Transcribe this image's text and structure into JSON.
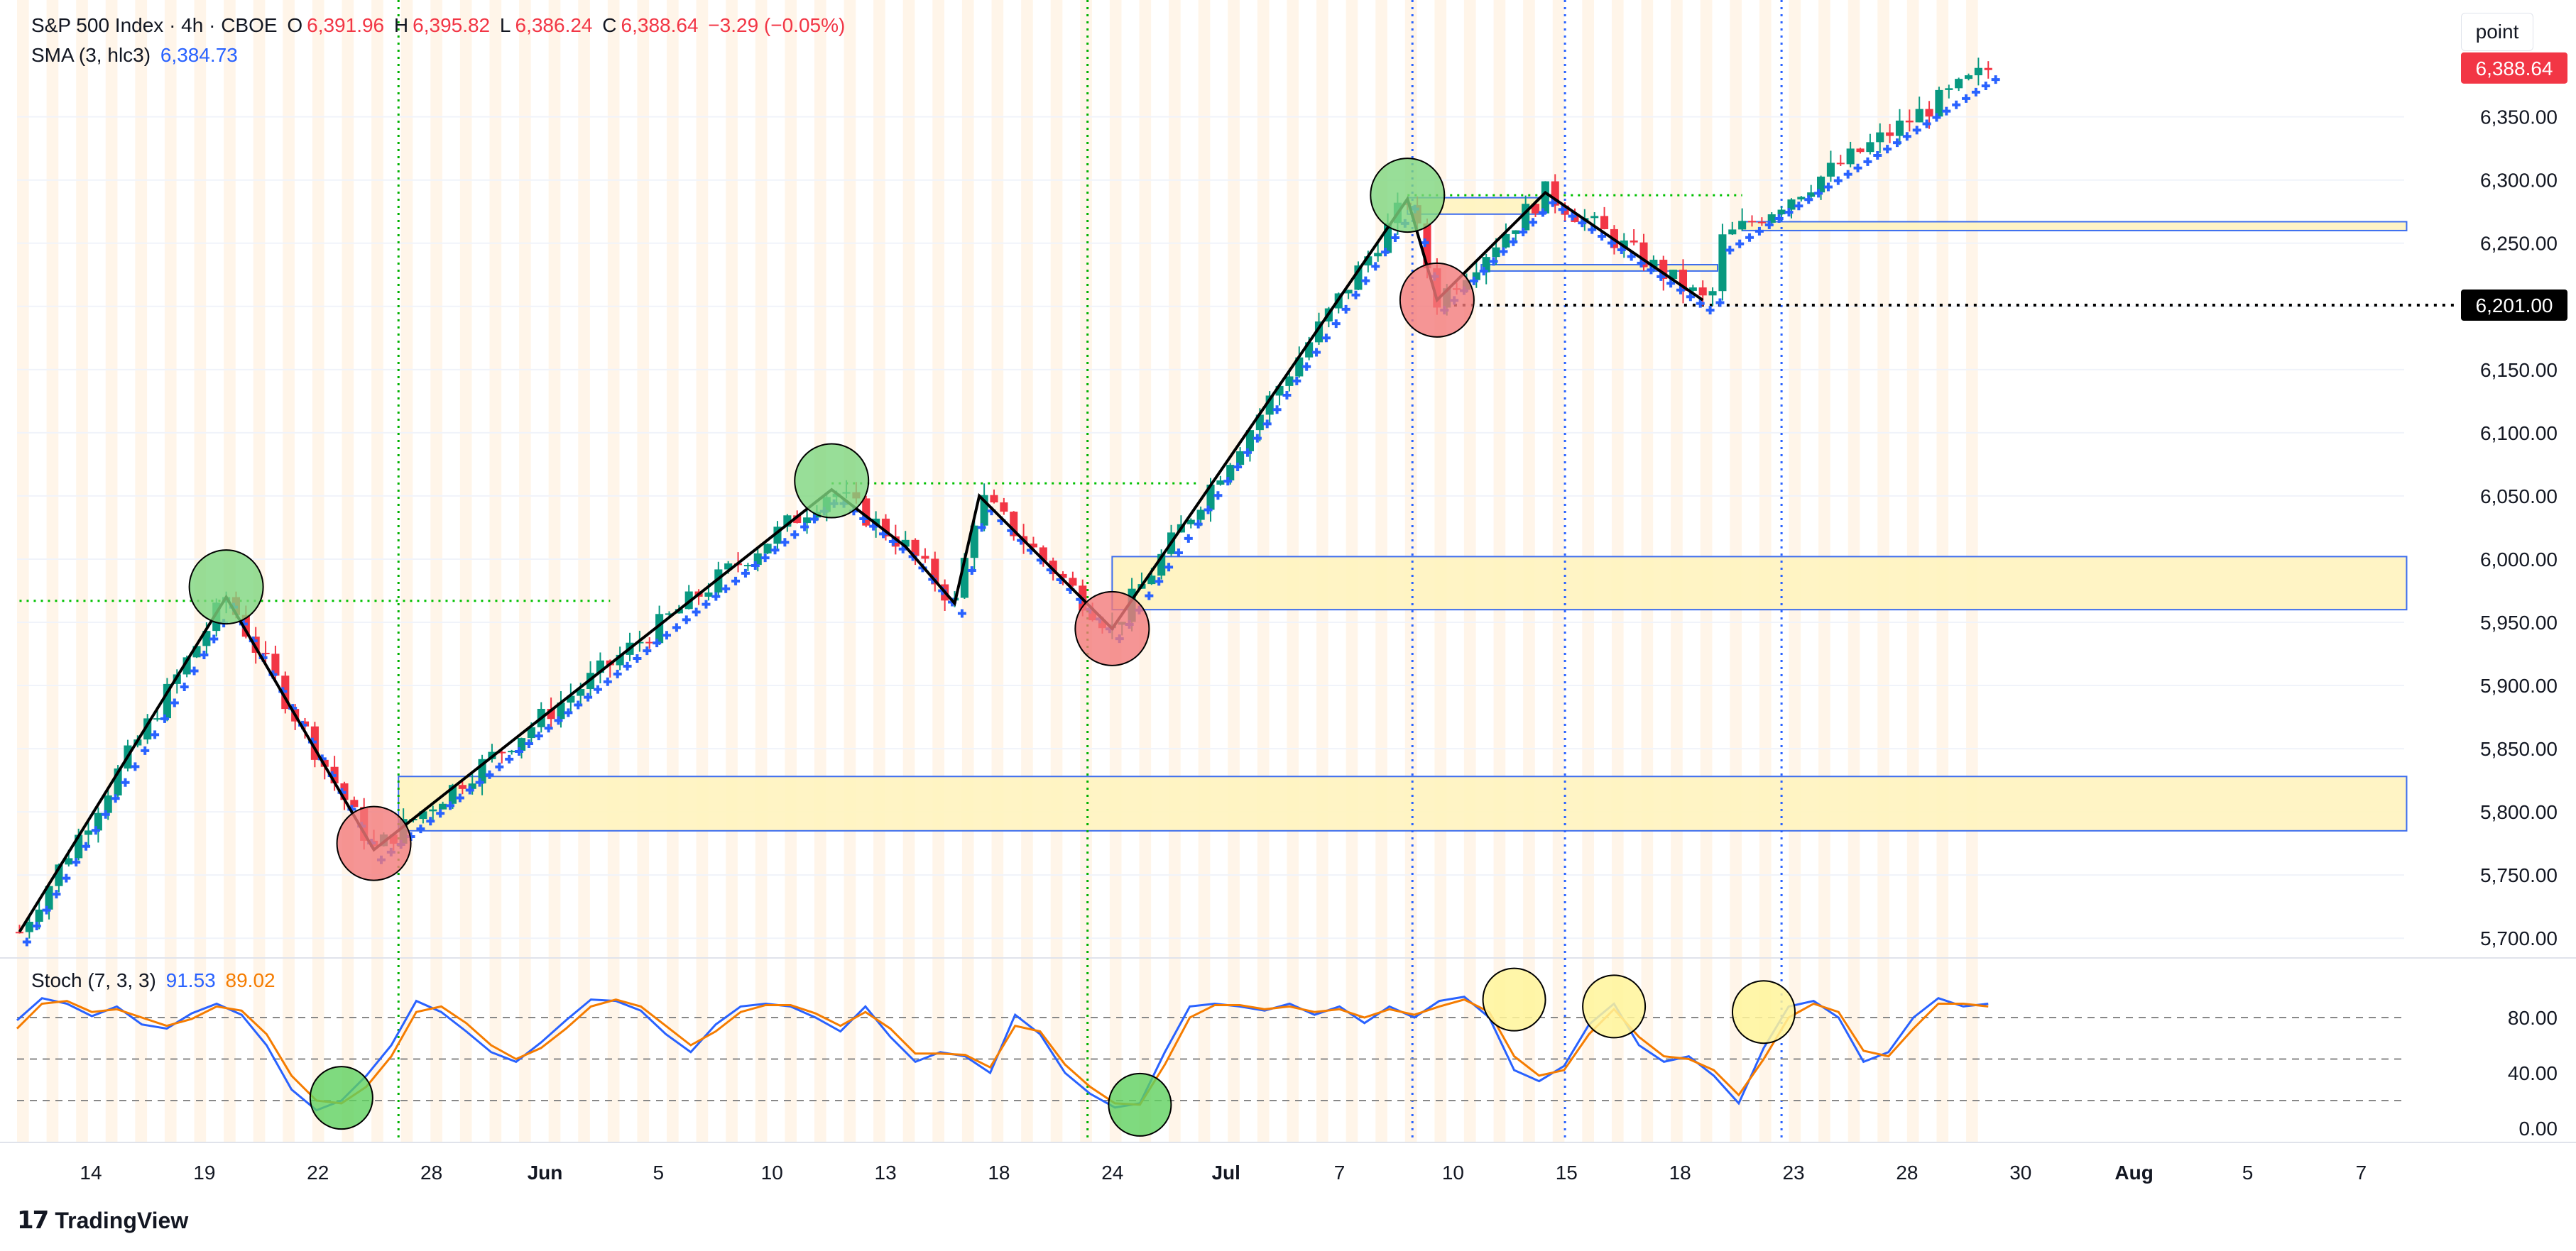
{
  "header": {
    "symbol": "S&P 500 Index · 4h · CBOE",
    "open_label": "O",
    "open": "6,391.96",
    "high_label": "H",
    "high": "6,395.82",
    "low_label": "L",
    "low": "6,386.24",
    "close_label": "C",
    "close": "6,388.64",
    "change": "−3.29 (−0.05%)",
    "sma_label": "SMA (3, hlc3)",
    "sma_value": "6,384.73"
  },
  "toolbar": {
    "point_button": "point"
  },
  "stoch_header": {
    "label": "Stoch (7, 3, 3)",
    "k_value": "91.53",
    "d_value": "89.02"
  },
  "footer": {
    "logo_text": "TradingView"
  },
  "colors": {
    "up": "#089981",
    "down": "#f23645",
    "sma": "#2962ff",
    "stoch_k": "#2962ff",
    "stoch_d": "#f57c00",
    "zone_fill": "#fff4c2",
    "zone_border": "#3366ee"
  },
  "chart_data": [
    {
      "type": "candlestick",
      "title": "S&P 500 Index · 4h · CBOE",
      "ylim": [
        5690,
        6420
      ],
      "y_ticks": [
        5700,
        5750,
        5800,
        5850,
        5900,
        5950,
        6000,
        6050,
        6100,
        6150,
        6200,
        6250,
        6300,
        6350
      ],
      "y_tick_labels": [
        "5,700.00",
        "5,750.00",
        "5,800.00",
        "5,850.00",
        "5,900.00",
        "5,950.00",
        "6,000.00",
        "6,050.00",
        "6,100.00",
        "6,150.00",
        "6,200.00",
        "6,250.00",
        "6,300.00",
        "6,350.00"
      ],
      "x_labels": [
        "14",
        "19",
        "22",
        "28",
        "Jun",
        "5",
        "10",
        "13",
        "18",
        "24",
        "Jul",
        "7",
        "10",
        "15",
        "18",
        "23",
        "28",
        "30",
        "Aug",
        "5",
        "7"
      ],
      "last_price_label": "6,388.64",
      "level_line": {
        "value": 6201,
        "label": "6,201.00"
      },
      "swing_path": [
        [
          0,
          5705
        ],
        [
          42,
          5970
        ],
        [
          72,
          5770
        ],
        [
          165,
          6055
        ],
        [
          180,
          6010
        ],
        [
          190,
          5965
        ],
        [
          195,
          6050
        ],
        [
          222,
          5945
        ],
        [
          282,
          6285
        ],
        [
          288,
          6205
        ],
        [
          310,
          6290
        ],
        [
          342,
          6205
        ]
      ],
      "swing_highs": [
        [
          42,
          5978
        ],
        [
          165,
          6062
        ],
        [
          282,
          6288
        ]
      ],
      "swing_lows": [
        [
          72,
          5775
        ],
        [
          222,
          5945
        ],
        [
          288,
          6205
        ]
      ],
      "zones": [
        {
          "from": 77,
          "to": 485,
          "low": 5785,
          "high": 5828
        },
        {
          "from": 222,
          "to": 485,
          "low": 5960,
          "high": 6002
        },
        {
          "from": 282,
          "to": 310,
          "low": 6273,
          "high": 6286
        },
        {
          "from": 297,
          "to": 345,
          "low": 6228,
          "high": 6233
        },
        {
          "from": 350,
          "to": 485,
          "low": 6260,
          "high": 6267
        }
      ],
      "dotted_levels": [
        {
          "from": 0,
          "to": 120,
          "value": 5967,
          "color": "#00c000"
        },
        {
          "from": 165,
          "to": 240,
          "value": 6060,
          "color": "#00c000"
        },
        {
          "from": 282,
          "to": 350,
          "value": 6288,
          "color": "#00c000"
        }
      ],
      "vertical_markers": [
        {
          "index": 77,
          "color": "#00b000"
        },
        {
          "index": 217,
          "color": "#00b000"
        },
        {
          "index": 283,
          "color": "#2962ff"
        },
        {
          "index": 314,
          "color": "#2962ff"
        },
        {
          "index": 358,
          "color": "#2962ff"
        }
      ],
      "candles_count": 402
    },
    {
      "type": "line",
      "title": "Stoch (7, 3, 3)",
      "ylim": [
        0,
        100
      ],
      "y_ticks": [
        0,
        40,
        80
      ],
      "y_tick_labels": [
        "0.00",
        "40.00",
        "80.00"
      ],
      "bands": [
        20,
        50,
        80
      ],
      "series": [
        {
          "name": "%K",
          "values": [
            78,
            94,
            90,
            81,
            88,
            75,
            72,
            83,
            90,
            82,
            60,
            28,
            13,
            20,
            38,
            60,
            92,
            84,
            70,
            55,
            48,
            62,
            78,
            93,
            92,
            85,
            68,
            55,
            75,
            88,
            90,
            88,
            80,
            70,
            88,
            66,
            48,
            55,
            52,
            40,
            82,
            68,
            40,
            25,
            15,
            18,
            55,
            88,
            90,
            88,
            85,
            90,
            82,
            88,
            76,
            88,
            80,
            92,
            95,
            80,
            42,
            34,
            45,
            75,
            90,
            60,
            48,
            52,
            38,
            18,
            58,
            88,
            92,
            80,
            48,
            55,
            80,
            94,
            88,
            90
          ]
        },
        {
          "name": "%D",
          "values": [
            72,
            90,
            92,
            84,
            86,
            80,
            74,
            79,
            88,
            85,
            68,
            38,
            20,
            18,
            30,
            52,
            84,
            88,
            76,
            60,
            50,
            58,
            72,
            88,
            93,
            88,
            74,
            60,
            70,
            84,
            89,
            89,
            83,
            74,
            84,
            72,
            54,
            54,
            53,
            44,
            74,
            70,
            46,
            30,
            18,
            17,
            46,
            80,
            89,
            89,
            86,
            88,
            84,
            86,
            80,
            86,
            82,
            88,
            93,
            84,
            52,
            38,
            42,
            68,
            86,
            66,
            52,
            50,
            42,
            24,
            50,
            80,
            90,
            84,
            56,
            52,
            72,
            90,
            90,
            88
          ]
        }
      ],
      "highlight_lows": [
        [
          13,
          22
        ],
        [
          45,
          17
        ]
      ],
      "highlight_highs": [
        [
          60,
          93
        ],
        [
          64,
          88
        ],
        [
          70,
          84
        ]
      ]
    }
  ]
}
